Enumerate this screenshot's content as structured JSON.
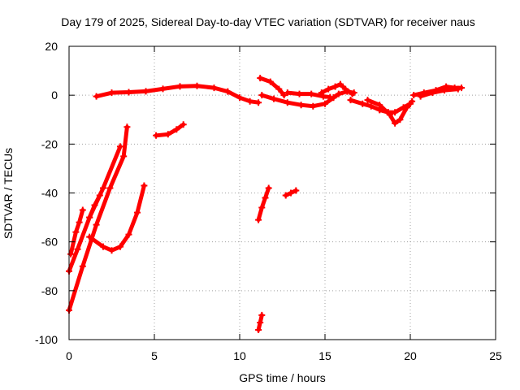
{
  "chart_data": {
    "type": "scatter",
    "title": "Day 179 of 2025, Sidereal Day-to-day VTEC variation (SDTVAR) for receiver naus",
    "xlabel": "GPS time / hours",
    "ylabel": "SDTVAR / TECUs",
    "xlim": [
      0,
      25
    ],
    "ylim": [
      -100,
      20
    ],
    "xticks": [
      0,
      5,
      10,
      15,
      20,
      25
    ],
    "yticks": [
      20,
      0,
      -20,
      -40,
      -60,
      -80,
      -100
    ],
    "grid": true,
    "series_color": "#ff0000",
    "series": [
      {
        "name": "arc-main",
        "points": [
          [
            1.6,
            -0.5
          ],
          [
            2.5,
            1
          ],
          [
            3.5,
            1.2
          ],
          [
            4.5,
            1.6
          ],
          [
            5.5,
            2.6
          ],
          [
            6.5,
            3.6
          ],
          [
            7.5,
            3.8
          ],
          [
            8.5,
            3
          ],
          [
            9.3,
            1.5
          ],
          [
            10,
            -1
          ],
          [
            10.6,
            -2.5
          ],
          [
            11.1,
            -3
          ]
        ]
      },
      {
        "name": "arc-a",
        "points": [
          [
            11.2,
            7
          ],
          [
            11.8,
            5.5
          ],
          [
            12.3,
            2.5
          ],
          [
            12.6,
            0
          ]
        ]
      },
      {
        "name": "arc-b",
        "points": [
          [
            11.3,
            0
          ],
          [
            12,
            -1.5
          ],
          [
            12.8,
            -3
          ],
          [
            13.6,
            -4
          ],
          [
            14.3,
            -4.5
          ],
          [
            15,
            -3.5
          ],
          [
            15.5,
            -1
          ]
        ]
      },
      {
        "name": "arc-c",
        "points": [
          [
            12.8,
            1
          ],
          [
            13.5,
            0.5
          ],
          [
            14.2,
            0.5
          ],
          [
            14.9,
            -0.5
          ],
          [
            15.3,
            -0.8
          ]
        ]
      },
      {
        "name": "arc-d",
        "points": [
          [
            14.8,
            1
          ],
          [
            15.2,
            2.5
          ],
          [
            15.6,
            3.5
          ],
          [
            15.9,
            4.5
          ],
          [
            16.2,
            2.5
          ],
          [
            16.6,
            0.5
          ]
        ]
      },
      {
        "name": "arc-e",
        "points": [
          [
            15.5,
            -1
          ],
          [
            15.8,
            0.5
          ],
          [
            16.3,
            1.5
          ],
          [
            16.7,
            1
          ]
        ]
      },
      {
        "name": "arc-f",
        "points": [
          [
            16.5,
            -2
          ],
          [
            17.2,
            -3.5
          ],
          [
            17.7,
            -4.5
          ],
          [
            18.2,
            -6
          ],
          [
            18.7,
            -7
          ]
        ]
      },
      {
        "name": "arc-g",
        "points": [
          [
            17.5,
            -2
          ],
          [
            18.2,
            -4
          ],
          [
            18.8,
            -8
          ],
          [
            19.1,
            -11.5
          ],
          [
            19.4,
            -10
          ],
          [
            19.8,
            -5
          ],
          [
            20.1,
            -2.5
          ]
        ]
      },
      {
        "name": "arc-h",
        "points": [
          [
            18.2,
            -6
          ],
          [
            18.7,
            -7
          ],
          [
            19.1,
            -7
          ],
          [
            19.6,
            -5
          ],
          [
            20,
            -3.5
          ]
        ]
      },
      {
        "name": "arc-i",
        "points": [
          [
            20.2,
            0
          ],
          [
            20.8,
            1
          ],
          [
            21.5,
            2
          ],
          [
            22.1,
            3.5
          ],
          [
            22.6,
            3
          ],
          [
            23,
            3
          ]
        ]
      },
      {
        "name": "arc-j",
        "points": [
          [
            20.6,
            -0.5
          ],
          [
            21.3,
            1
          ],
          [
            22,
            2
          ],
          [
            22.8,
            2.5
          ]
        ]
      },
      {
        "name": "arc-k",
        "points": [
          [
            0,
            -88
          ],
          [
            0.8,
            -70
          ],
          [
            1.6,
            -53
          ],
          [
            2.4,
            -38
          ],
          [
            3.2,
            -25
          ],
          [
            3.4,
            -13
          ]
        ]
      },
      {
        "name": "arc-l",
        "points": [
          [
            0,
            -72
          ],
          [
            0.5,
            -63
          ],
          [
            1.2,
            -50
          ],
          [
            2,
            -38
          ],
          [
            3,
            -21
          ]
        ]
      },
      {
        "name": "arc-m",
        "points": [
          [
            0.1,
            -65
          ],
          [
            0.4,
            -56
          ],
          [
            0.6,
            -52
          ],
          [
            0.8,
            -47
          ]
        ]
      },
      {
        "name": "arc-n",
        "points": [
          [
            1.2,
            -58
          ],
          [
            2,
            -62
          ],
          [
            2.5,
            -63.5
          ],
          [
            3,
            -62
          ],
          [
            3.5,
            -57
          ],
          [
            4,
            -48
          ],
          [
            4.4,
            -37
          ]
        ]
      },
      {
        "name": "arc-o",
        "points": [
          [
            1.2,
            -50
          ],
          [
            1.5,
            -45
          ],
          [
            1.8,
            -41
          ]
        ]
      },
      {
        "name": "arc-p",
        "points": [
          [
            5.1,
            -16.5
          ],
          [
            5.8,
            -16
          ],
          [
            6.3,
            -14
          ],
          [
            6.7,
            -12
          ]
        ]
      },
      {
        "name": "arc-q",
        "points": [
          [
            11.1,
            -51
          ],
          [
            11.3,
            -46
          ],
          [
            11.5,
            -42
          ],
          [
            11.7,
            -38
          ]
        ]
      },
      {
        "name": "arc-r",
        "points": [
          [
            12.7,
            -41
          ],
          [
            13,
            -40
          ],
          [
            13.3,
            -39
          ]
        ]
      },
      {
        "name": "arc-s",
        "points": [
          [
            11.1,
            -96
          ],
          [
            11.2,
            -93
          ],
          [
            11.3,
            -90
          ]
        ]
      }
    ]
  }
}
